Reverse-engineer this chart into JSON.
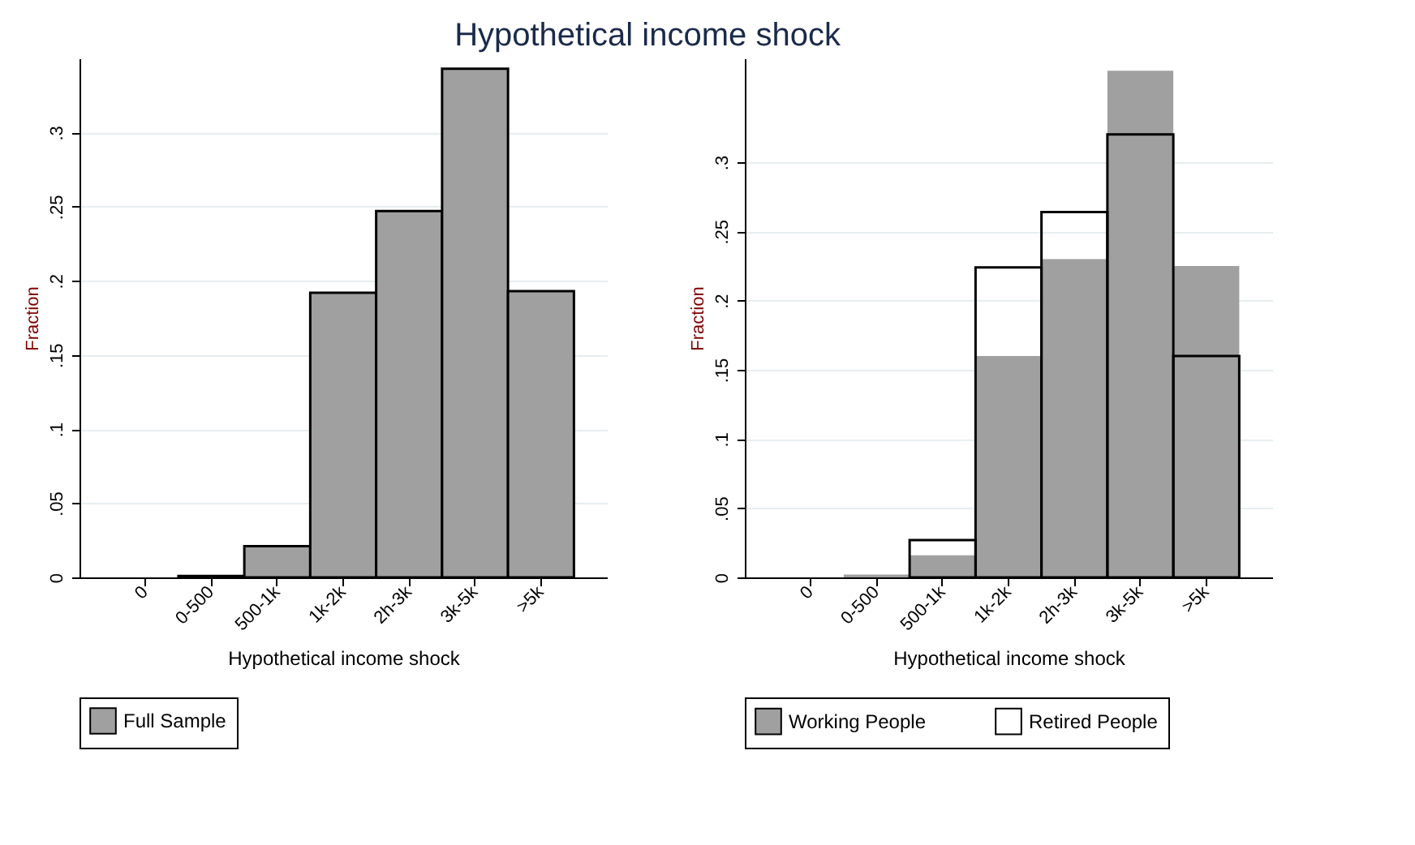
{
  "chart_data": [
    {
      "type": "bar",
      "title": "Hypothetical  income shock",
      "xlabel": "Hypothetical income shock",
      "ylabel": "Fraction",
      "categories": [
        "0",
        "0-500",
        "500-1k",
        "1k-2k",
        "2h-3k",
        "3k-5k",
        ">5k"
      ],
      "series": [
        {
          "name": "Full Sample",
          "color": "#a0a0a0",
          "values": [
            null,
            0.001,
            0.021,
            0.192,
            0.247,
            0.343,
            0.193
          ]
        }
      ],
      "ylim": [
        0,
        0.35
      ],
      "yticks": [
        0,
        {
          "value": 0.05,
          "label": ".05"
        },
        {
          "value": 0.1,
          "label": ".1"
        },
        {
          "value": 0.15,
          "label": ".15"
        },
        {
          "value": 0.2,
          "label": ".2"
        },
        {
          "value": 0.25,
          "label": ".25"
        },
        {
          "value": 0.3,
          "label": ".3"
        }
      ],
      "grid": "y",
      "legend": "bottom"
    },
    {
      "type": "bar",
      "xlabel": "Hypothetical income shock",
      "ylabel": "Fraction",
      "categories": [
        "0",
        "0-500",
        "500-1k",
        "1k-2k",
        "2h-3k",
        "3k-5k",
        ">5k"
      ],
      "series": [
        {
          "name": "Working People",
          "color": "#a0a0a0",
          "values": [
            null,
            0.002,
            0.016,
            0.16,
            0.23,
            0.366,
            0.225
          ]
        },
        {
          "name": "Retired People",
          "color": "#000000",
          "values": [
            null,
            null,
            0.027,
            0.224,
            0.264,
            0.32,
            0.16
          ]
        }
      ],
      "ylim": [
        0,
        0.375
      ],
      "yticks": [
        0,
        {
          "value": 0.05,
          "label": ".05"
        },
        {
          "value": 0.1,
          "label": ".1"
        },
        {
          "value": 0.15,
          "label": ".15"
        },
        {
          "value": 0.2,
          "label": ".2"
        },
        {
          "value": 0.25,
          "label": ".25"
        },
        {
          "value": 0.3,
          "label": ".3"
        }
      ],
      "grid": "y",
      "legend": "bottom"
    }
  ]
}
